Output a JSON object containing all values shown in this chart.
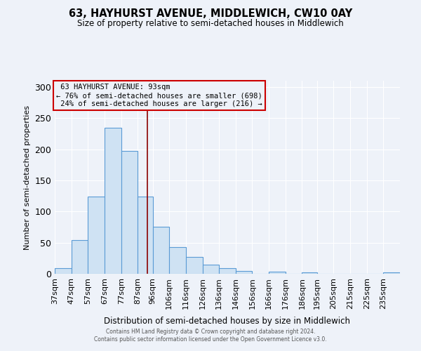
{
  "title": "63, HAYHURST AVENUE, MIDDLEWICH, CW10 0AY",
  "subtitle": "Size of property relative to semi-detached houses in Middlewich",
  "xlabel": "Distribution of semi-detached houses by size in Middlewich",
  "ylabel": "Number of semi-detached properties",
  "bin_edges": [
    37,
    47,
    57,
    67,
    77,
    87,
    96,
    106,
    116,
    126,
    136,
    146,
    156,
    166,
    176,
    186,
    195,
    205,
    215,
    225,
    235,
    245
  ],
  "bin_labels": [
    "37sqm",
    "47sqm",
    "57sqm",
    "67sqm",
    "77sqm",
    "87sqm",
    "96sqm",
    "106sqm",
    "116sqm",
    "126sqm",
    "136sqm",
    "146sqm",
    "156sqm",
    "166sqm",
    "176sqm",
    "186sqm",
    "195sqm",
    "205sqm",
    "215sqm",
    "225sqm",
    "235sqm"
  ],
  "counts": [
    9,
    54,
    124,
    234,
    197,
    124,
    75,
    43,
    27,
    15,
    9,
    4,
    0,
    3,
    0,
    2,
    0,
    0,
    0,
    0,
    2
  ],
  "bar_color": "#cfe2f3",
  "bar_edge_color": "#5b9bd5",
  "property_value": 93,
  "property_label": "63 HAYHURST AVENUE: 93sqm",
  "pct_smaller": 76,
  "n_smaller": 698,
  "pct_larger": 24,
  "n_larger": 216,
  "vline_color": "#8b0000",
  "annotation_box_color": "#cc0000",
  "ylim": [
    0,
    310
  ],
  "yticks": [
    0,
    50,
    100,
    150,
    200,
    250,
    300
  ],
  "background_color": "#eef2f9",
  "grid_color": "#ffffff",
  "footer_line1": "Contains HM Land Registry data © Crown copyright and database right 2024.",
  "footer_line2": "Contains public sector information licensed under the Open Government Licence v3.0."
}
